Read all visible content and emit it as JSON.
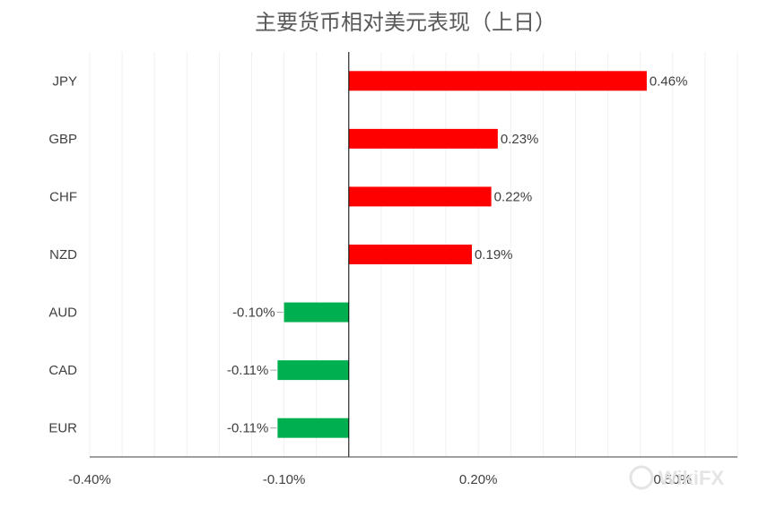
{
  "chart_data": {
    "type": "bar",
    "orientation": "horizontal",
    "title": "主要货币相对美元表现（上日）",
    "categories": [
      "JPY",
      "GBP",
      "CHF",
      "NZD",
      "AUD",
      "CAD",
      "EUR"
    ],
    "values": [
      0.46,
      0.23,
      0.22,
      0.19,
      -0.1,
      -0.11,
      -0.11
    ],
    "data_labels": [
      "0.46%",
      "0.23%",
      "0.22%",
      "0.19%",
      "-0.10%",
      "-0.11%",
      "-0.11%"
    ],
    "xlim": [
      -0.4,
      0.6
    ],
    "x_ticks": [
      -0.4,
      -0.1,
      0.2,
      0.5
    ],
    "x_tick_labels": [
      "-0.40%",
      "-0.10%",
      "0.20%",
      "0.50%"
    ],
    "grid": true,
    "legend": "none",
    "colors": {
      "positive": "#ff0000",
      "negative": "#00b050"
    }
  },
  "watermark": {
    "text": "WikiFX"
  }
}
